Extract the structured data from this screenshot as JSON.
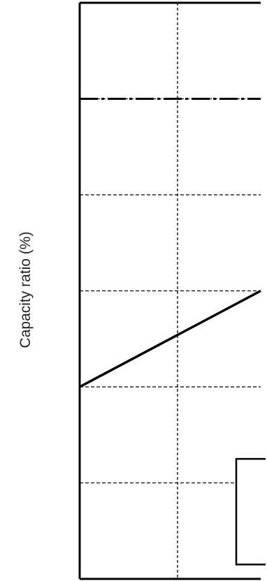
{
  "chart_data": {
    "type": "line",
    "ylabel": "Capacity ratio (%)",
    "xlabel": "",
    "title": "",
    "grid": true,
    "series": [
      {
        "style": "solid",
        "color": "#000000",
        "points": [
          [
            0,
            0.8
          ],
          [
            1.85,
            1.2
          ]
        ]
      }
    ],
    "reference_lines": [
      {
        "axis": "y",
        "value": 2.0,
        "style": "dash-dot",
        "color": "#000000"
      }
    ],
    "boxes": [
      {
        "x0": 1.6,
        "x1": 1.9,
        "y0": 0.06,
        "y1": 0.5,
        "color": "#000000"
      }
    ],
    "xlim": [
      0,
      1.85
    ],
    "ylim": [
      0,
      2.4
    ],
    "x_gridlines": [
      1
    ],
    "y_gridlines": [
      0.4,
      0.8,
      1.2,
      1.6,
      2.0
    ],
    "colors": {
      "axis": "#000000",
      "grid": "#000000",
      "label": "#222222"
    }
  }
}
